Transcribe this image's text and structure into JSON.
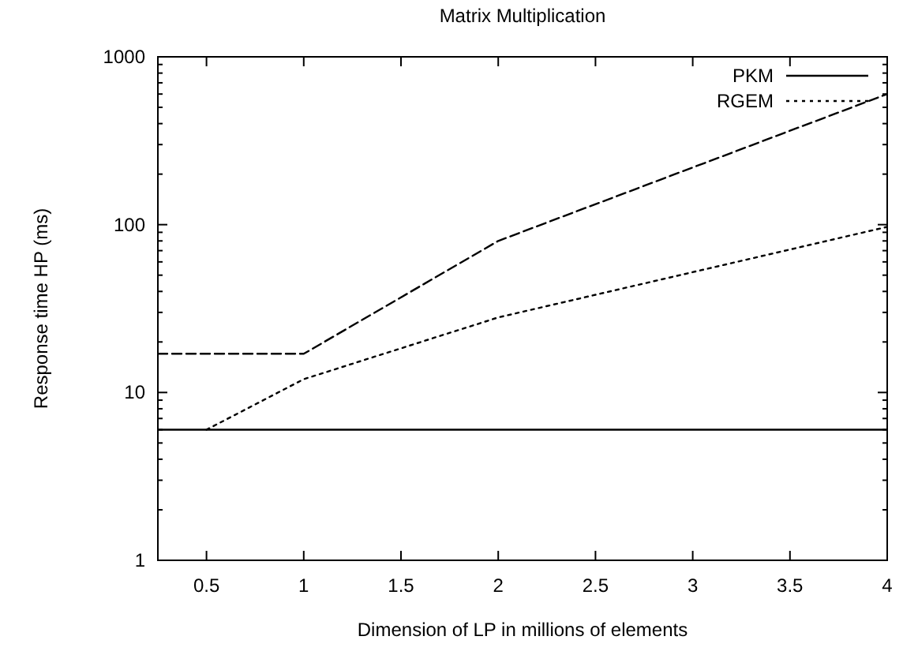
{
  "chart_data": {
    "type": "line",
    "title": "Matrix Multiplication",
    "xlabel": "Dimension of LP in millions of elements",
    "ylabel": "Response time HP (ms)",
    "log": "y",
    "xlim": [
      0.25,
      4
    ],
    "xticks": [
      0.5,
      1,
      1.5,
      2,
      2.5,
      3,
      3.5,
      4
    ],
    "ylim": [
      1,
      1000
    ],
    "yticks": [
      1,
      10,
      100,
      1000
    ],
    "legend": "top right",
    "grid": false,
    "marker": "none",
    "series": [
      {
        "name": "PKM",
        "color": "#000000",
        "line_style": "solid",
        "x": [
          0.25,
          4
        ],
        "values": [
          6,
          6
        ]
      },
      {
        "color": "#000000",
        "line_style": "dashed",
        "x": [
          0.25,
          1,
          2,
          4
        ],
        "values": [
          17,
          17,
          80,
          600
        ]
      },
      {
        "name": "RGEM",
        "color": "#000000",
        "line_style": "dotted",
        "x": [
          0.5,
          1,
          2,
          4
        ],
        "values": [
          6,
          12,
          28,
          97
        ]
      }
    ]
  }
}
